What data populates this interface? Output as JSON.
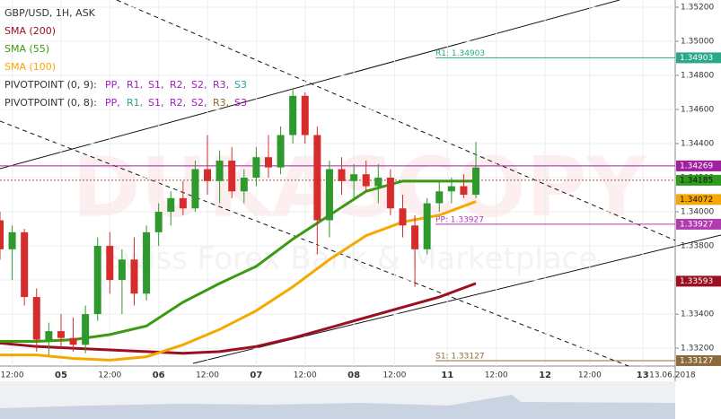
{
  "chart_data": {
    "type": "candlestick",
    "title": "GBP/USD, 1H, ASK",
    "watermark": "DUKASCOPY",
    "watermark_subtitle": "Swiss Forex Bank & Marketplace",
    "xlim": [
      9,
      175
    ],
    "ylim": [
      1.33111,
      1.35242
    ],
    "yticks": [
      {
        "value": 1.352,
        "label": "1.35200"
      },
      {
        "value": 1.35,
        "label": "1.35000"
      },
      {
        "value": 1.348,
        "label": "1.34800"
      },
      {
        "value": 1.346,
        "label": "1.34600"
      },
      {
        "value": 1.344,
        "label": "1.34400"
      },
      {
        "value": 1.342,
        "label": "1.34200"
      },
      {
        "value": 1.34,
        "label": "1.34000"
      },
      {
        "value": 1.338,
        "label": "1.33800"
      },
      {
        "value": 1.336,
        "label": "1.33600"
      },
      {
        "value": 1.334,
        "label": "1.33400"
      },
      {
        "value": 1.332,
        "label": "1.33200"
      }
    ],
    "xticks": [
      {
        "value": 12,
        "label": "12:00"
      },
      {
        "value": 24,
        "label": "05"
      },
      {
        "value": 36,
        "label": "12:00"
      },
      {
        "value": 48,
        "label": "06"
      },
      {
        "value": 60,
        "label": "12:00"
      },
      {
        "value": 72,
        "label": "07"
      },
      {
        "value": 84,
        "label": "12:00"
      },
      {
        "value": 96,
        "label": "08"
      },
      {
        "value": 106,
        "label": "12:00"
      },
      {
        "value": 119,
        "label": "11"
      },
      {
        "value": 131,
        "label": "12:00"
      },
      {
        "value": 143,
        "label": "12"
      },
      {
        "value": 154,
        "label": "12:00"
      },
      {
        "value": 167,
        "label": "13"
      },
      {
        "value": 180,
        "label": "13.06.2018"
      }
    ],
    "grid": true,
    "up_color": "#2e9a2e",
    "down_color": "#d62c2c",
    "candles": {
      "x": [
        9,
        12,
        15,
        18,
        21,
        24,
        27,
        30,
        33,
        36,
        39,
        42,
        45,
        48,
        51,
        54,
        57,
        60,
        63,
        66,
        69,
        72,
        75,
        78,
        81,
        84,
        87,
        90,
        93,
        96,
        99,
        102,
        105,
        108,
        111,
        114,
        117,
        120,
        123,
        126
      ],
      "open": [
        1.3395,
        1.3378,
        1.3388,
        1.335,
        1.3325,
        1.333,
        1.3326,
        1.3322,
        1.334,
        1.338,
        1.336,
        1.3372,
        1.3352,
        1.3388,
        1.34,
        1.3408,
        1.3402,
        1.3425,
        1.3418,
        1.343,
        1.3412,
        1.342,
        1.3432,
        1.3426,
        1.3445,
        1.3468,
        1.3445,
        1.3395,
        1.3425,
        1.3418,
        1.3422,
        1.3415,
        1.342,
        1.3402,
        1.3392,
        1.3378,
        1.3405,
        1.3412,
        1.3415,
        1.341
      ],
      "high": [
        1.34,
        1.3392,
        1.339,
        1.3355,
        1.3335,
        1.334,
        1.3338,
        1.3345,
        1.3385,
        1.3388,
        1.3378,
        1.3385,
        1.3392,
        1.3405,
        1.3412,
        1.3418,
        1.343,
        1.3445,
        1.3436,
        1.3438,
        1.3425,
        1.3438,
        1.3445,
        1.345,
        1.3472,
        1.347,
        1.345,
        1.343,
        1.3432,
        1.3428,
        1.343,
        1.3428,
        1.3425,
        1.341,
        1.3398,
        1.3408,
        1.3418,
        1.342,
        1.3422,
        1.3441
      ],
      "low": [
        1.3372,
        1.336,
        1.3345,
        1.3318,
        1.3316,
        1.332,
        1.3318,
        1.3317,
        1.3336,
        1.3352,
        1.334,
        1.3345,
        1.3348,
        1.338,
        1.3392,
        1.3398,
        1.34,
        1.341,
        1.3405,
        1.3408,
        1.3405,
        1.3415,
        1.342,
        1.3422,
        1.344,
        1.344,
        1.3375,
        1.3385,
        1.341,
        1.3408,
        1.3412,
        1.3405,
        1.3398,
        1.3385,
        1.3356,
        1.3375,
        1.34,
        1.3405,
        1.3408,
        1.3408
      ],
      "close": [
        1.3378,
        1.3388,
        1.335,
        1.3325,
        1.333,
        1.3326,
        1.3322,
        1.334,
        1.338,
        1.336,
        1.3372,
        1.3352,
        1.3388,
        1.34,
        1.3408,
        1.3402,
        1.3425,
        1.3418,
        1.343,
        1.3412,
        1.342,
        1.3432,
        1.3426,
        1.3445,
        1.3468,
        1.3445,
        1.3395,
        1.3425,
        1.3418,
        1.3422,
        1.3415,
        1.342,
        1.3402,
        1.3392,
        1.3378,
        1.3405,
        1.3412,
        1.3415,
        1.341,
        1.3426
      ]
    },
    "indicators": {
      "x": [
        9,
        18,
        27,
        36,
        45,
        54,
        63,
        72,
        81,
        90,
        99,
        108,
        117,
        126
      ],
      "series": [
        {
          "name": "SMA (200)",
          "color": "#9b1020",
          "values": [
            1.3323,
            1.3321,
            1.332,
            1.3319,
            1.3318,
            1.3317,
            1.3318,
            1.3321,
            1.3326,
            1.3332,
            1.3338,
            1.3344,
            1.335,
            1.3358
          ]
        },
        {
          "name": "SMA (55)",
          "color": "#3a9a12",
          "values": [
            1.3324,
            1.3324,
            1.3325,
            1.3328,
            1.3333,
            1.3347,
            1.3358,
            1.3368,
            1.3384,
            1.3398,
            1.3412,
            1.3418,
            1.3418,
            1.3418
          ]
        },
        {
          "name": "SMA (100)",
          "color": "#f5a800",
          "values": [
            1.3316,
            1.3316,
            1.3314,
            1.3313,
            1.3315,
            1.3322,
            1.3331,
            1.3342,
            1.3356,
            1.3372,
            1.3386,
            1.3394,
            1.3398,
            1.3406
          ]
        }
      ]
    },
    "pivots": [
      {
        "name": "PIVOTPOINT (0, 9):",
        "items": [
          {
            "text": "PP,",
            "color": "#a020c0"
          },
          {
            "text": "R1,",
            "color": "#a020c0"
          },
          {
            "text": "S1,",
            "color": "#a020c0"
          },
          {
            "text": "R2,",
            "color": "#a020c0"
          },
          {
            "text": "S2,",
            "color": "#a020c0"
          },
          {
            "text": "R3,",
            "color": "#a020c0"
          },
          {
            "text": "S3",
            "color": "#2aa0a0"
          }
        ]
      },
      {
        "name": "PIVOTPOINT (0, 8):",
        "items": [
          {
            "text": "PP,",
            "color": "#a020c0"
          },
          {
            "text": "R1,",
            "color": "#2aa889"
          },
          {
            "text": "S1,",
            "color": "#a020c0"
          },
          {
            "text": "R2,",
            "color": "#a020c0"
          },
          {
            "text": "S2,",
            "color": "#a020c0"
          },
          {
            "text": "R3,",
            "color": "#8b6b2c"
          },
          {
            "text": "S3",
            "color": "#a020c0"
          }
        ]
      }
    ],
    "levels": [
      {
        "label": "R1: 1.34903",
        "value": 1.34903,
        "color": "#2aa889"
      },
      {
        "label": "PP: 1.33927",
        "value": 1.33927,
        "color": "#b03cb0"
      },
      {
        "label": "S1: 1.33127",
        "value": 1.33127,
        "color": "#8b6b3c"
      }
    ],
    "price_markers": [
      {
        "value": 1.34269,
        "color": "#a020a0",
        "line": "solid"
      },
      {
        "value": 1.34185,
        "color": "#2e9a1e",
        "line": "dashed"
      },
      {
        "value": 1.34072,
        "color": "#f5a800",
        "line": "none"
      },
      {
        "value": 1.33593,
        "color": "#9b1020",
        "line": "none"
      }
    ]
  }
}
